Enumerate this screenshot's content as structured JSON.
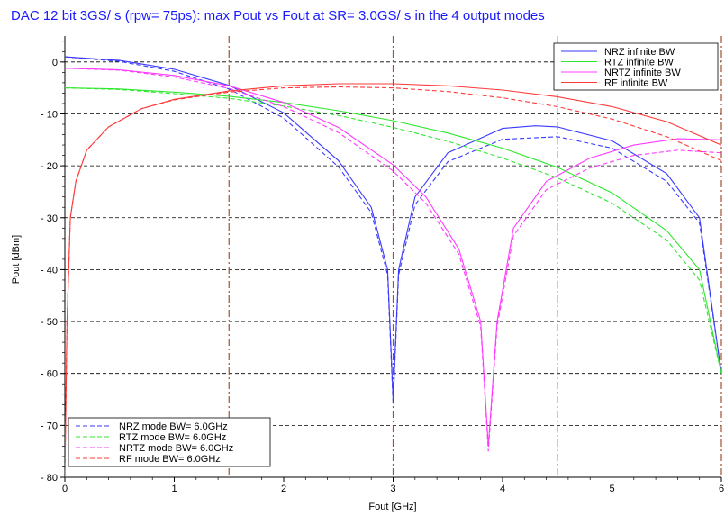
{
  "chart_data": {
    "type": "line",
    "title": "DAC 12 bit 3GS/ s (rpw= 75ps): max Pout vs Fout at SR= 3.0GS/ s in the 4 output modes",
    "xlabel": "Fout [GHz]",
    "ylabel": "Pout [dBm]",
    "xlim": [
      0,
      6
    ],
    "ylim": [
      -80,
      5
    ],
    "x_ticks": [
      0,
      1,
      2,
      3,
      4,
      5,
      6
    ],
    "y_ticks": [
      0,
      -10,
      -20,
      -30,
      -40,
      -50,
      -60,
      -70,
      -80
    ],
    "x_tick_labels": [
      "0",
      "1",
      "2",
      "3",
      "4",
      "5",
      "6"
    ],
    "y_tick_labels": [
      "0",
      "- 10",
      "- 20",
      "- 30",
      "- 40",
      "- 50",
      "- 60",
      "- 70",
      "- 80"
    ],
    "grid": "horizontal dashed",
    "vertical_markers": [
      1.5,
      3.0,
      4.5,
      6.0
    ],
    "legend_top": {
      "placement": "top-right",
      "entries": [
        "NRZ infinite BW",
        "RTZ infinite BW",
        "NRTZ infinite BW",
        "RF infinite BW"
      ]
    },
    "legend_bottom": {
      "placement": "bottom-left",
      "entries": [
        "NRZ mode BW= 6.0GHz",
        "RTZ mode BW= 6.0GHz",
        "NRTZ mode BW= 6.0GHz",
        "RF mode BW= 6.0GHz"
      ]
    },
    "series": [
      {
        "name": "NRZ infinite BW",
        "color": "#3a3aff",
        "dash": "solid",
        "x": [
          0,
          0.5,
          1,
          1.5,
          2,
          2.5,
          2.8,
          2.95,
          3.0,
          3.05,
          3.2,
          3.5,
          4.0,
          4.3,
          4.5,
          5.0,
          5.5,
          5.8,
          6.0
        ],
        "y": [
          1.0,
          0.3,
          -1.4,
          -4.5,
          -9.8,
          -19,
          -28,
          -40,
          -65,
          -40,
          -26,
          -17.5,
          -12.8,
          -12.3,
          -12.5,
          -15.2,
          -21.5,
          -30,
          -60
        ]
      },
      {
        "name": "NRZ mode BW= 6.0GHz",
        "color": "#3a3aff",
        "dash": "dashed",
        "x": [
          0,
          0.5,
          1,
          1.5,
          2,
          2.5,
          2.8,
          2.95,
          3.0,
          3.05,
          3.2,
          3.5,
          4.0,
          4.5,
          5.0,
          5.5,
          5.8,
          6.0
        ],
        "y": [
          1.0,
          0.1,
          -1.8,
          -5.2,
          -10.8,
          -20.2,
          -29,
          -41,
          -66,
          -41,
          -27.5,
          -19.2,
          -14.9,
          -14.4,
          -16.6,
          -23,
          -31,
          -60
        ]
      },
      {
        "name": "RTZ infinite BW",
        "color": "#2ee82e",
        "dash": "solid",
        "x": [
          0,
          0.5,
          1,
          1.5,
          2,
          2.5,
          3,
          3.5,
          4,
          4.5,
          5,
          5.5,
          5.8,
          6.0
        ],
        "y": [
          -5,
          -5.2,
          -5.8,
          -6.6,
          -7.8,
          -9.4,
          -11.3,
          -13.7,
          -16.6,
          -20.3,
          -25.2,
          -32.5,
          -40,
          -60
        ]
      },
      {
        "name": "RTZ mode BW= 6.0GHz",
        "color": "#2ee82e",
        "dash": "dashed",
        "x": [
          0,
          0.5,
          1,
          1.5,
          2,
          2.5,
          3,
          3.5,
          4,
          4.5,
          5,
          5.5,
          5.8,
          6.0
        ],
        "y": [
          -5,
          -5.3,
          -6.1,
          -7.0,
          -8.5,
          -10.3,
          -12.6,
          -15.3,
          -18.5,
          -22.3,
          -27.2,
          -34.3,
          -42,
          -60
        ]
      },
      {
        "name": "NRTZ infinite BW",
        "color": "#ff3aff",
        "dash": "solid",
        "x": [
          0,
          0.5,
          1,
          1.5,
          2,
          2.5,
          3,
          3.3,
          3.6,
          3.8,
          3.87,
          3.95,
          4.1,
          4.4,
          4.8,
          5.2,
          5.6,
          6.0
        ],
        "y": [
          -1.2,
          -1.5,
          -2.6,
          -4.6,
          -7.8,
          -12.6,
          -19.8,
          -26,
          -36,
          -50,
          -74,
          -50,
          -32,
          -23,
          -18.5,
          -16,
          -14.8,
          -15
        ]
      },
      {
        "name": "NRTZ mode BW= 6.0GHz",
        "color": "#ff3aff",
        "dash": "dashed",
        "x": [
          0,
          0.5,
          1,
          1.5,
          2,
          2.5,
          3,
          3.3,
          3.6,
          3.8,
          3.87,
          3.95,
          4.1,
          4.4,
          4.8,
          5.2,
          5.6,
          6.0
        ],
        "y": [
          -1.2,
          -1.6,
          -2.9,
          -5.1,
          -8.6,
          -13.6,
          -21,
          -27.2,
          -37,
          -51,
          -75,
          -51,
          -33.5,
          -24.6,
          -20.4,
          -18,
          -17,
          -17.5
        ]
      },
      {
        "name": "RF infinite BW",
        "color": "#ff3a3a",
        "dash": "solid",
        "x": [
          0,
          0.02,
          0.05,
          0.1,
          0.2,
          0.4,
          0.7,
          1.0,
          1.5,
          2.0,
          2.5,
          3.0,
          3.5,
          4.0,
          4.5,
          5.0,
          5.5,
          6.0
        ],
        "y": [
          -80,
          -50,
          -30,
          -23,
          -17,
          -12.5,
          -9,
          -7.2,
          -5.6,
          -4.6,
          -4.2,
          -4.2,
          -4.6,
          -5.4,
          -6.7,
          -8.6,
          -11.5,
          -16
        ]
      },
      {
        "name": "RF mode BW= 6.0GHz",
        "color": "#ff3a3a",
        "dash": "dashed",
        "x": [
          0,
          0.02,
          0.05,
          0.1,
          0.2,
          0.4,
          0.7,
          1.0,
          1.5,
          2.0,
          2.5,
          3.0,
          3.5,
          4.0,
          4.5,
          5.0,
          5.5,
          6.0
        ],
        "y": [
          -80,
          -50,
          -30,
          -23,
          -17,
          -12.5,
          -9,
          -7.3,
          -5.8,
          -5.0,
          -4.8,
          -5.0,
          -5.7,
          -6.9,
          -8.6,
          -11.0,
          -14.4,
          -19
        ]
      }
    ]
  }
}
